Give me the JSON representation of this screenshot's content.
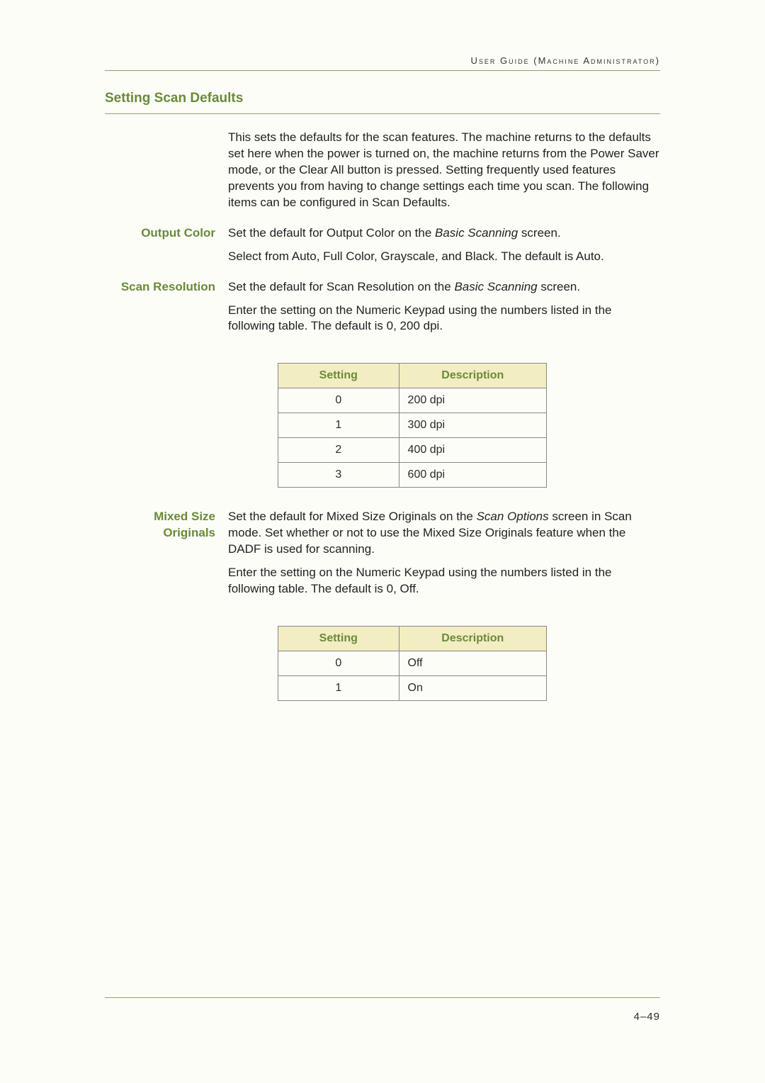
{
  "header": "User Guide (Machine Administrator)",
  "section_title": "Setting Scan Defaults",
  "intro": "This sets the defaults for the scan features. The machine returns to the defaults set here when the power is turned on, the machine returns from the Power Saver mode, or the Clear All button is pressed.  Setting frequently used features prevents you from having to change settings each time you scan. The following items can be configured in Scan Defaults.",
  "output_color": {
    "label": "Output Color",
    "p1_a": "Set the default for Output Color on the ",
    "p1_i": "Basic Scanning",
    "p1_b": " screen.",
    "p2": "Select from Auto, Full Color, Grayscale, and Black. The default is Auto."
  },
  "scan_resolution": {
    "label": "Scan Resolution",
    "p1_a": "Set the default for Scan Resolution on the ",
    "p1_i": "Basic Scanning",
    "p1_b": " screen.",
    "p2": "Enter the setting on the Numeric Keypad using the numbers listed in the following table. The default is 0, 200 dpi."
  },
  "mixed_size": {
    "label": "Mixed Size Originals",
    "p1_a": "Set the default for Mixed Size Originals on the ",
    "p1_i": "Scan Options",
    "p1_b": " screen in Scan mode. Set whether or not to use the Mixed Size Originals feature when the DADF is used for scanning.",
    "p2": "Enter the setting on the Numeric Keypad using the numbers listed in the following table. The default is 0, Off."
  },
  "table_headers": {
    "setting": "Setting",
    "description": "Description"
  },
  "resolution_table": {
    "rows": [
      {
        "setting": "0",
        "description": "200 dpi"
      },
      {
        "setting": "1",
        "description": "300 dpi"
      },
      {
        "setting": "2",
        "description": "400 dpi"
      },
      {
        "setting": "3",
        "description": "600 dpi"
      }
    ]
  },
  "mixed_table": {
    "rows": [
      {
        "setting": "0",
        "description": "Off"
      },
      {
        "setting": "1",
        "description": "On"
      }
    ]
  },
  "page_number": "4–49",
  "colors": {
    "accent": "#6a8a3a",
    "rule": "#88aa66",
    "th_bg": "#f3edc2",
    "body_bg": "#fcfdf7"
  }
}
